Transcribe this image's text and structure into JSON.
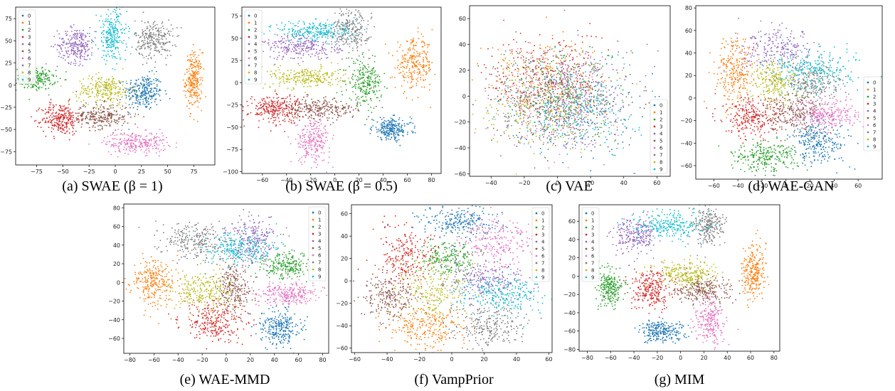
{
  "figure": {
    "colors": [
      "#1f77b4",
      "#ff7f0e",
      "#2ca02c",
      "#d62728",
      "#9467bd",
      "#8c564b",
      "#e377c2",
      "#7f7f7f",
      "#bcbd22",
      "#17becf"
    ]
  },
  "chart_data": [
    {
      "type": "scatter",
      "caption": "(a) SWAE (β = 1)",
      "xticks": [
        -75,
        -50,
        -25,
        0,
        25,
        50,
        75
      ],
      "yticks": [
        -75,
        -50,
        -25,
        0,
        25,
        50,
        75
      ],
      "xlim": [
        -95,
        95
      ],
      "ylim": [
        -90,
        88
      ],
      "legend": [
        "0",
        "1",
        "2",
        "3",
        "4",
        "5",
        "6",
        "7",
        "8",
        "9"
      ],
      "legend_pos": "top-left",
      "clusters": [
        {
          "label": "0",
          "cx": 27,
          "cy": -8,
          "sx": 9,
          "sy": 10,
          "n": 260
        },
        {
          "label": "1",
          "cx": 75,
          "cy": 5,
          "sx": 4,
          "sy": 16,
          "n": 260
        },
        {
          "label": "2",
          "cx": -77,
          "cy": 7,
          "sx": 10,
          "sy": 6,
          "n": 240
        },
        {
          "label": "3",
          "cx": -52,
          "cy": -38,
          "sx": 9,
          "sy": 9,
          "n": 260
        },
        {
          "label": "4",
          "cx": -37,
          "cy": 45,
          "sx": 9,
          "sy": 10,
          "n": 260
        },
        {
          "label": "5",
          "cx": -13,
          "cy": -35,
          "sx": 14,
          "sy": 7,
          "n": 260
        },
        {
          "label": "6",
          "cx": 20,
          "cy": -65,
          "sx": 15,
          "sy": 6,
          "n": 260
        },
        {
          "label": "7",
          "cx": 37,
          "cy": 52,
          "sx": 9,
          "sy": 11,
          "n": 260
        },
        {
          "label": "8",
          "cx": -10,
          "cy": -5,
          "sx": 13,
          "sy": 8,
          "n": 260
        },
        {
          "label": "9",
          "cx": -3,
          "cy": 55,
          "sx": 7,
          "sy": 15,
          "n": 260
        }
      ]
    },
    {
      "type": "scatter",
      "caption": "(b) SWAE (β = 0.5)",
      "xticks": [
        -60,
        -40,
        -20,
        0,
        20,
        40,
        60,
        80
      ],
      "yticks": [
        -100,
        -75,
        -50,
        -25,
        0,
        25,
        50,
        75
      ],
      "xlim": [
        -77,
        88
      ],
      "ylim": [
        -102,
        85
      ],
      "legend": [
        "0",
        "1",
        "2",
        "3",
        "4",
        "5",
        "6",
        "7",
        "8",
        "9"
      ],
      "legend_pos": "top-left",
      "clusters": [
        {
          "label": "0",
          "cx": 47,
          "cy": -52,
          "sx": 8,
          "sy": 6,
          "n": 240
        },
        {
          "label": "1",
          "cx": 66,
          "cy": 20,
          "sx": 8,
          "sy": 14,
          "n": 260
        },
        {
          "label": "2",
          "cx": 25,
          "cy": 0,
          "sx": 7,
          "sy": 12,
          "n": 240
        },
        {
          "label": "3",
          "cx": -49,
          "cy": -29,
          "sx": 11,
          "sy": 8,
          "n": 260
        },
        {
          "label": "4",
          "cx": -27,
          "cy": 40,
          "sx": 16,
          "sy": 7,
          "n": 260
        },
        {
          "label": "5",
          "cx": -13,
          "cy": -30,
          "sx": 16,
          "sy": 6,
          "n": 260
        },
        {
          "label": "6",
          "cx": -18,
          "cy": -65,
          "sx": 7,
          "sy": 12,
          "n": 240
        },
        {
          "label": "7",
          "cx": 13,
          "cy": 60,
          "sx": 8,
          "sy": 12,
          "n": 240
        },
        {
          "label": "8",
          "cx": -23,
          "cy": 6,
          "sx": 15,
          "sy": 6,
          "n": 260
        },
        {
          "label": "9",
          "cx": -15,
          "cy": 58,
          "sx": 16,
          "sy": 6,
          "n": 260
        }
      ]
    },
    {
      "type": "scatter",
      "caption": "(c) VAE",
      "xticks": [
        -40,
        -20,
        0,
        20,
        40,
        60
      ],
      "yticks": [
        -60,
        -40,
        -20,
        0,
        20,
        40,
        60
      ],
      "xlim": [
        -53,
        68
      ],
      "ylim": [
        -62,
        70
      ],
      "legend": [
        "0",
        "1",
        "2",
        "3",
        "4",
        "5",
        "6",
        "7",
        "8",
        "9"
      ],
      "legend_pos": "lower-right",
      "clusters": [
        {
          "label": "0",
          "cx": 8,
          "cy": -12,
          "sx": 18,
          "sy": 16,
          "n": 220
        },
        {
          "label": "1",
          "cx": -10,
          "cy": 14,
          "sx": 18,
          "sy": 16,
          "n": 220
        },
        {
          "label": "2",
          "cx": 2,
          "cy": 2,
          "sx": 20,
          "sy": 18,
          "n": 220
        },
        {
          "label": "3",
          "cx": -6,
          "cy": 18,
          "sx": 18,
          "sy": 16,
          "n": 220
        },
        {
          "label": "4",
          "cx": 12,
          "cy": 6,
          "sx": 18,
          "sy": 16,
          "n": 220
        },
        {
          "label": "5",
          "cx": -4,
          "cy": -4,
          "sx": 18,
          "sy": 16,
          "n": 220
        },
        {
          "label": "6",
          "cx": -2,
          "cy": -14,
          "sx": 18,
          "sy": 16,
          "n": 220
        },
        {
          "label": "7",
          "cx": 4,
          "cy": 0,
          "sx": 20,
          "sy": 18,
          "n": 220
        },
        {
          "label": "8",
          "cx": -8,
          "cy": -8,
          "sx": 18,
          "sy": 16,
          "n": 220
        },
        {
          "label": "9",
          "cx": 12,
          "cy": -10,
          "sx": 18,
          "sy": 16,
          "n": 220
        }
      ]
    },
    {
      "type": "scatter",
      "caption": "(d) WAE-GAN",
      "xticks": [
        -60,
        -40,
        -20,
        0,
        20,
        40,
        60
      ],
      "yticks": [
        -60,
        -40,
        -20,
        0,
        20,
        40,
        60,
        80
      ],
      "xlim": [
        -75,
        80
      ],
      "ylim": [
        -72,
        82
      ],
      "legend": [
        "0",
        "1",
        "2",
        "3",
        "4",
        "5",
        "6",
        "7",
        "8",
        "9"
      ],
      "legend_pos": "right",
      "clusters": [
        {
          "label": "0",
          "cx": 28,
          "cy": -38,
          "sx": 12,
          "sy": 10,
          "n": 260
        },
        {
          "label": "1",
          "cx": -42,
          "cy": 22,
          "sx": 8,
          "sy": 16,
          "n": 260
        },
        {
          "label": "2",
          "cx": -18,
          "cy": -52,
          "sx": 14,
          "sy": 7,
          "n": 260
        },
        {
          "label": "3",
          "cx": -28,
          "cy": -18,
          "sx": 12,
          "sy": 9,
          "n": 260
        },
        {
          "label": "4",
          "cx": -5,
          "cy": 42,
          "sx": 16,
          "sy": 9,
          "n": 240
        },
        {
          "label": "5",
          "cx": 5,
          "cy": -12,
          "sx": 12,
          "sy": 8,
          "n": 220
        },
        {
          "label": "6",
          "cx": 35,
          "cy": -15,
          "sx": 13,
          "sy": 7,
          "n": 260
        },
        {
          "label": "7",
          "cx": 22,
          "cy": 12,
          "sx": 12,
          "sy": 9,
          "n": 260
        },
        {
          "label": "8",
          "cx": -10,
          "cy": 15,
          "sx": 10,
          "sy": 10,
          "n": 240
        },
        {
          "label": "9",
          "cx": 25,
          "cy": 25,
          "sx": 18,
          "sy": 9,
          "n": 260
        }
      ]
    },
    {
      "type": "scatter",
      "caption": "(e) WAE-MMD",
      "xticks": [
        -80,
        -60,
        -40,
        -20,
        0,
        20,
        40,
        60,
        80
      ],
      "yticks": [
        -60,
        -40,
        -20,
        0,
        20,
        40,
        60,
        80
      ],
      "xlim": [
        -85,
        85
      ],
      "ylim": [
        -76,
        84
      ],
      "legend": [
        "0",
        "1",
        "2",
        "3",
        "4",
        "5",
        "6",
        "7",
        "8",
        "9"
      ],
      "legend_pos": "top-right",
      "clusters": [
        {
          "label": "0",
          "cx": 45,
          "cy": -48,
          "sx": 8,
          "sy": 10,
          "n": 260
        },
        {
          "label": "1",
          "cx": -60,
          "cy": 0,
          "sx": 9,
          "sy": 13,
          "n": 260
        },
        {
          "label": "2",
          "cx": 50,
          "cy": 18,
          "sx": 10,
          "sy": 7,
          "n": 220
        },
        {
          "label": "3",
          "cx": -10,
          "cy": -42,
          "sx": 13,
          "sy": 11,
          "n": 260
        },
        {
          "label": "4",
          "cx": 22,
          "cy": 45,
          "sx": 10,
          "sy": 12,
          "n": 240
        },
        {
          "label": "5",
          "cx": 6,
          "cy": -6,
          "sx": 7,
          "sy": 15,
          "n": 240
        },
        {
          "label": "6",
          "cx": 52,
          "cy": -12,
          "sx": 13,
          "sy": 6,
          "n": 260
        },
        {
          "label": "7",
          "cx": -25,
          "cy": 45,
          "sx": 13,
          "sy": 10,
          "n": 260
        },
        {
          "label": "8",
          "cx": -20,
          "cy": -10,
          "sx": 13,
          "sy": 11,
          "n": 260
        },
        {
          "label": "9",
          "cx": 10,
          "cy": 35,
          "sx": 15,
          "sy": 9,
          "n": 260
        }
      ]
    },
    {
      "type": "scatter",
      "caption": "(f) VampPrior",
      "xticks": [
        -60,
        -40,
        -20,
        0,
        20,
        40,
        60
      ],
      "yticks": [
        -60,
        -40,
        -20,
        0,
        20,
        40,
        60
      ],
      "xlim": [
        -62,
        62
      ],
      "ylim": [
        -64,
        68
      ],
      "legend": [
        "0",
        "1",
        "2",
        "3",
        "4",
        "5",
        "6",
        "7",
        "8",
        "9"
      ],
      "legend_pos": "top-right",
      "clusters": [
        {
          "label": "0",
          "cx": 5,
          "cy": 52,
          "sx": 12,
          "sy": 7,
          "n": 240
        },
        {
          "label": "1",
          "cx": -15,
          "cy": -42,
          "sx": 12,
          "sy": 10,
          "n": 260
        },
        {
          "label": "2",
          "cx": -2,
          "cy": 20,
          "sx": 9,
          "sy": 9,
          "n": 220
        },
        {
          "label": "3",
          "cx": -28,
          "cy": 22,
          "sx": 10,
          "sy": 14,
          "n": 240
        },
        {
          "label": "4",
          "cx": 22,
          "cy": 0,
          "sx": 12,
          "sy": 8,
          "n": 240
        },
        {
          "label": "5",
          "cx": -38,
          "cy": -14,
          "sx": 8,
          "sy": 10,
          "n": 220
        },
        {
          "label": "6",
          "cx": 28,
          "cy": 35,
          "sx": 12,
          "sy": 10,
          "n": 240
        },
        {
          "label": "7",
          "cx": 22,
          "cy": -40,
          "sx": 12,
          "sy": 10,
          "n": 260
        },
        {
          "label": "8",
          "cx": -12,
          "cy": -8,
          "sx": 10,
          "sy": 14,
          "n": 240
        },
        {
          "label": "9",
          "cx": 30,
          "cy": -12,
          "sx": 14,
          "sy": 8,
          "n": 260
        }
      ]
    },
    {
      "type": "scatter",
      "caption": "(g) MIM",
      "xticks": [
        -80,
        -60,
        -40,
        -20,
        0,
        20,
        40,
        60,
        80
      ],
      "yticks": [
        -80,
        -60,
        -40,
        -20,
        0,
        20,
        40,
        60
      ],
      "xlim": [
        -87,
        85
      ],
      "ylim": [
        -82,
        78
      ],
      "legend": [
        "0",
        "1",
        "2",
        "3",
        "4",
        "5",
        "6",
        "7",
        "8",
        "9"
      ],
      "legend_pos": "top-left",
      "clusters": [
        {
          "label": "0",
          "cx": -17,
          "cy": -60,
          "sx": 10,
          "sy": 6,
          "n": 240
        },
        {
          "label": "1",
          "cx": 63,
          "cy": 5,
          "sx": 5,
          "sy": 15,
          "n": 260
        },
        {
          "label": "2",
          "cx": -60,
          "cy": -12,
          "sx": 6,
          "sy": 10,
          "n": 240
        },
        {
          "label": "3",
          "cx": -25,
          "cy": -15,
          "sx": 9,
          "sy": 10,
          "n": 260
        },
        {
          "label": "4",
          "cx": -40,
          "cy": 45,
          "sx": 9,
          "sy": 10,
          "n": 240
        },
        {
          "label": "5",
          "cx": 20,
          "cy": -15,
          "sx": 13,
          "sy": 7,
          "n": 260
        },
        {
          "label": "6",
          "cx": 24,
          "cy": -50,
          "sx": 6,
          "sy": 13,
          "n": 240
        },
        {
          "label": "7",
          "cx": 23,
          "cy": 55,
          "sx": 7,
          "sy": 11,
          "n": 240
        },
        {
          "label": "8",
          "cx": 5,
          "cy": 3,
          "sx": 13,
          "sy": 7,
          "n": 260
        },
        {
          "label": "9",
          "cx": -12,
          "cy": 55,
          "sx": 16,
          "sy": 8,
          "n": 260
        }
      ]
    }
  ]
}
